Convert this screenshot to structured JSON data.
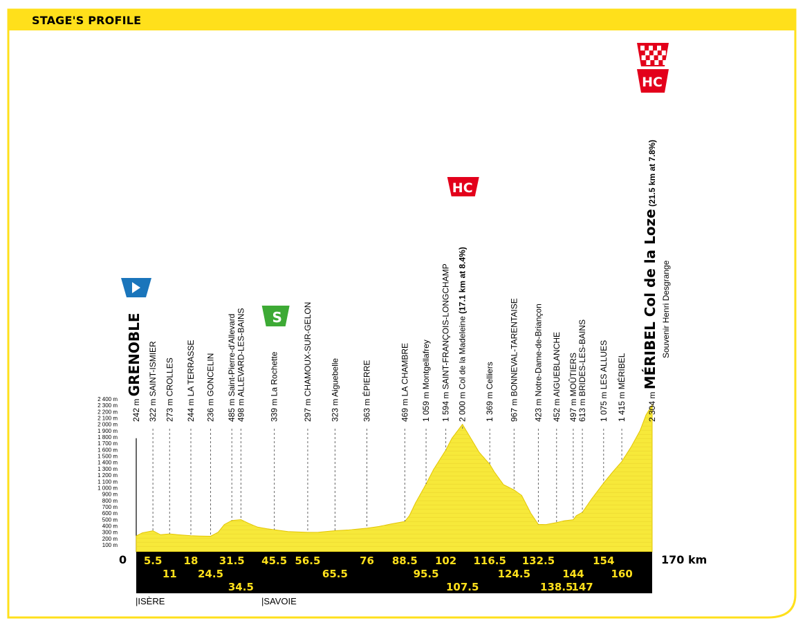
{
  "header": {
    "title": "STAGE'S PROFILE"
  },
  "colors": {
    "accent": "#FFE01B",
    "profile_fill": "#F7E93A",
    "strip": "#000000",
    "km_text": "#FFE01B",
    "hc_red": "#E3001B",
    "sprint_green": "#3DAA35",
    "start_blue": "#1A75BB"
  },
  "departments": [
    {
      "label": "|ISÈRE",
      "km": 0
    },
    {
      "label": "|SAVOIE",
      "km": 45.5
    }
  ],
  "km_start_label": "0",
  "km_end_label": "170 km",
  "markers": {
    "start_icon": "start-flag-icon",
    "sprint_icon": "sprint-s-icon",
    "hc_label_1": "HC",
    "hc_label_2": "HC",
    "finish_icon": "checkered-finish-icon",
    "sprint_label": "S"
  },
  "chart_data": {
    "type": "area",
    "title": "",
    "xlabel": "",
    "ylabel": "",
    "xlim": [
      0,
      170
    ],
    "ylim": [
      100,
      2400
    ],
    "y_ticks": [
      "100 m",
      "200 m",
      "300 m",
      "400 m",
      "500 m",
      "600 m",
      "700 m",
      "800 m",
      "900 m",
      "1 000 m",
      "1 100 m",
      "1 200 m",
      "1 300 m",
      "1 400 m",
      "1 500 m",
      "1 600 m",
      "1 700 m",
      "1 800 m",
      "1 900 m",
      "2 000 m",
      "2 100 m",
      "2 200 m",
      "2 300 m",
      "2 400 m"
    ],
    "profile": {
      "x": [
        0,
        2,
        5.5,
        8,
        11,
        15,
        18,
        21,
        24.5,
        27,
        29,
        31.5,
        34.5,
        37,
        40,
        43,
        45.5,
        50,
        56.5,
        60,
        65.5,
        70,
        76,
        80,
        84,
        88.5,
        90,
        92,
        95.5,
        98,
        102,
        104,
        107.5,
        110,
        113,
        116.5,
        118,
        121,
        124.5,
        127,
        130,
        132.5,
        135,
        138.5,
        141,
        144,
        145,
        147,
        150,
        154,
        157,
        160,
        163,
        166,
        168,
        170
      ],
      "y": [
        242,
        290,
        322,
        260,
        273,
        255,
        244,
        240,
        236,
        300,
        420,
        485,
        498,
        440,
        380,
        355,
        339,
        310,
        297,
        300,
        323,
        335,
        363,
        390,
        430,
        469,
        560,
        760,
        1059,
        1290,
        1594,
        1780,
        2000,
        1800,
        1560,
        1369,
        1250,
        1050,
        967,
        880,
        600,
        423,
        420,
        452,
        480,
        497,
        560,
        613,
        820,
        1075,
        1250,
        1415,
        1640,
        1900,
        2150,
        2304
      ]
    },
    "places": [
      {
        "km": 0,
        "alt": "242 m",
        "name": "GRENOBLE",
        "emph": "city"
      },
      {
        "km": 5.5,
        "alt": "322 m",
        "name": "SAINT-ISMIER",
        "emph": "town"
      },
      {
        "km": 11,
        "alt": "273 m",
        "name": "CROLLES",
        "emph": "town"
      },
      {
        "km": 18,
        "alt": "244 m",
        "name": "LA TERRASSE",
        "emph": "town"
      },
      {
        "km": 24.5,
        "alt": "236 m",
        "name": "GONCELIN",
        "emph": "town"
      },
      {
        "km": 31.5,
        "alt": "485 m",
        "name": "Saint-Pierre-d'Allevard",
        "emph": "place"
      },
      {
        "km": 34.5,
        "alt": "498 m",
        "name": "ALLEVARD-LES-BAINS",
        "emph": "town"
      },
      {
        "km": 45.5,
        "alt": "339 m",
        "name": "La Rochette",
        "emph": "place"
      },
      {
        "km": 56.5,
        "alt": "297 m",
        "name": "CHAMOUX-SUR-GELON",
        "emph": "town"
      },
      {
        "km": 65.5,
        "alt": "323 m",
        "name": "Aiguebelle",
        "emph": "place"
      },
      {
        "km": 76,
        "alt": "363 m",
        "name": "ÉPIERRE",
        "emph": "town"
      },
      {
        "km": 88.5,
        "alt": "469 m",
        "name": "LA CHAMBRE",
        "emph": "town"
      },
      {
        "km": 95.5,
        "alt": "1 059 m",
        "name": "Montgellafrey",
        "emph": "place"
      },
      {
        "km": 102,
        "alt": "1 594 m",
        "name": "SAINT-FRANÇOIS-LONGCHAMP",
        "emph": "town"
      },
      {
        "km": 107.5,
        "alt": "2 000 m",
        "name": "Col de la Madeleine",
        "extra": "(17.1 km at 8.4%)",
        "emph": "climb"
      },
      {
        "km": 116.5,
        "alt": "1 369 m",
        "name": "Celliers",
        "emph": "place"
      },
      {
        "km": 124.5,
        "alt": "967 m",
        "name": "BONNEVAL-TARENTAISE",
        "emph": "town"
      },
      {
        "km": 132.5,
        "alt": "423 m",
        "name": "Notre-Dame-de-Briançon",
        "emph": "place"
      },
      {
        "km": 138.5,
        "alt": "452 m",
        "name": "AIGUEBLANCHE",
        "emph": "town"
      },
      {
        "km": 144,
        "alt": "497 m",
        "name": "MOÛTIERS",
        "emph": "town"
      },
      {
        "km": 147,
        "alt": "613 m",
        "name": "BRIDES-LES-BAINS",
        "emph": "town"
      },
      {
        "km": 154,
        "alt": "1 075 m",
        "name": "LES ALLUES",
        "emph": "town"
      },
      {
        "km": 160,
        "alt": "1 415 m",
        "name": "MÉRIBEL",
        "emph": "town"
      },
      {
        "km": 170,
        "alt": "2 304 m",
        "name": "MÉRIBEL",
        "extra": "Col de la Loze",
        "extra2": "(21.5 km at 7.8%)",
        "sub": "Souvenir Henri Desgrange",
        "emph": "finish"
      }
    ],
    "km_row1": [
      "5.5",
      "11",
      "18",
      "24.5",
      "31.5",
      "45.5",
      "56.5",
      "65.5",
      "76",
      "88.5",
      "95.5",
      "102",
      "116.5",
      "124.5",
      "132.5",
      "144",
      "154",
      "160"
    ],
    "km_row1_kms": [
      5.5,
      11,
      18,
      24.5,
      31.5,
      45.5,
      56.5,
      65.5,
      76,
      88.5,
      95.5,
      102,
      116.5,
      124.5,
      132.5,
      144,
      154,
      160
    ],
    "km_row1_levels": [
      0,
      1,
      0,
      1,
      0,
      0,
      0,
      1,
      0,
      0,
      1,
      0,
      0,
      1,
      0,
      1,
      0,
      1
    ],
    "km_row2": [
      "34.5",
      "107.5",
      "138.5",
      "147"
    ],
    "km_row2_kms": [
      34.5,
      107.5,
      138.5,
      147
    ]
  }
}
